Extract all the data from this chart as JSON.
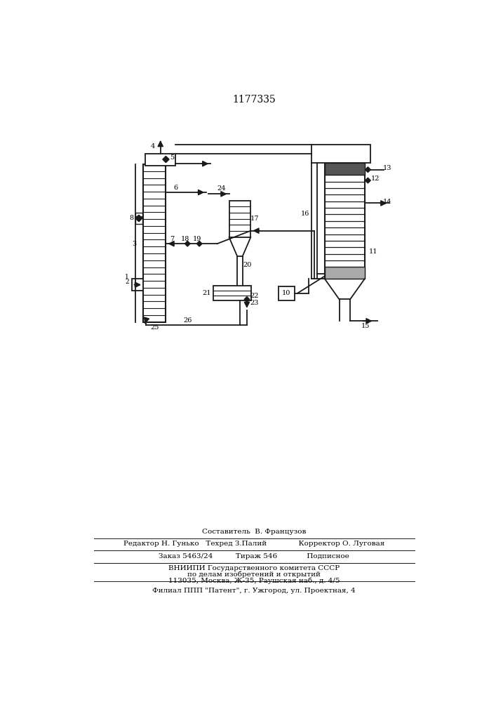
{
  "title": "1177335",
  "bg_color": "#ffffff",
  "line_color": "#1a1a1a",
  "footer_texts": [
    "Составитель  В. Французов",
    "Редактор Н. Гунько   Техред З.Палий            Корректор О. Луговая",
    "Заказ 5463/24          Тираж 546             Подписное",
    "ВНИИПИ Государственного комитета СССР",
    "по делам изобретений и открытий",
    "113035, Москва, Ж-35, Раушская наб., д. 4/5",
    "Филиал ППП \"Патент\", г. Ужгород, ул. Проектная, 4"
  ]
}
